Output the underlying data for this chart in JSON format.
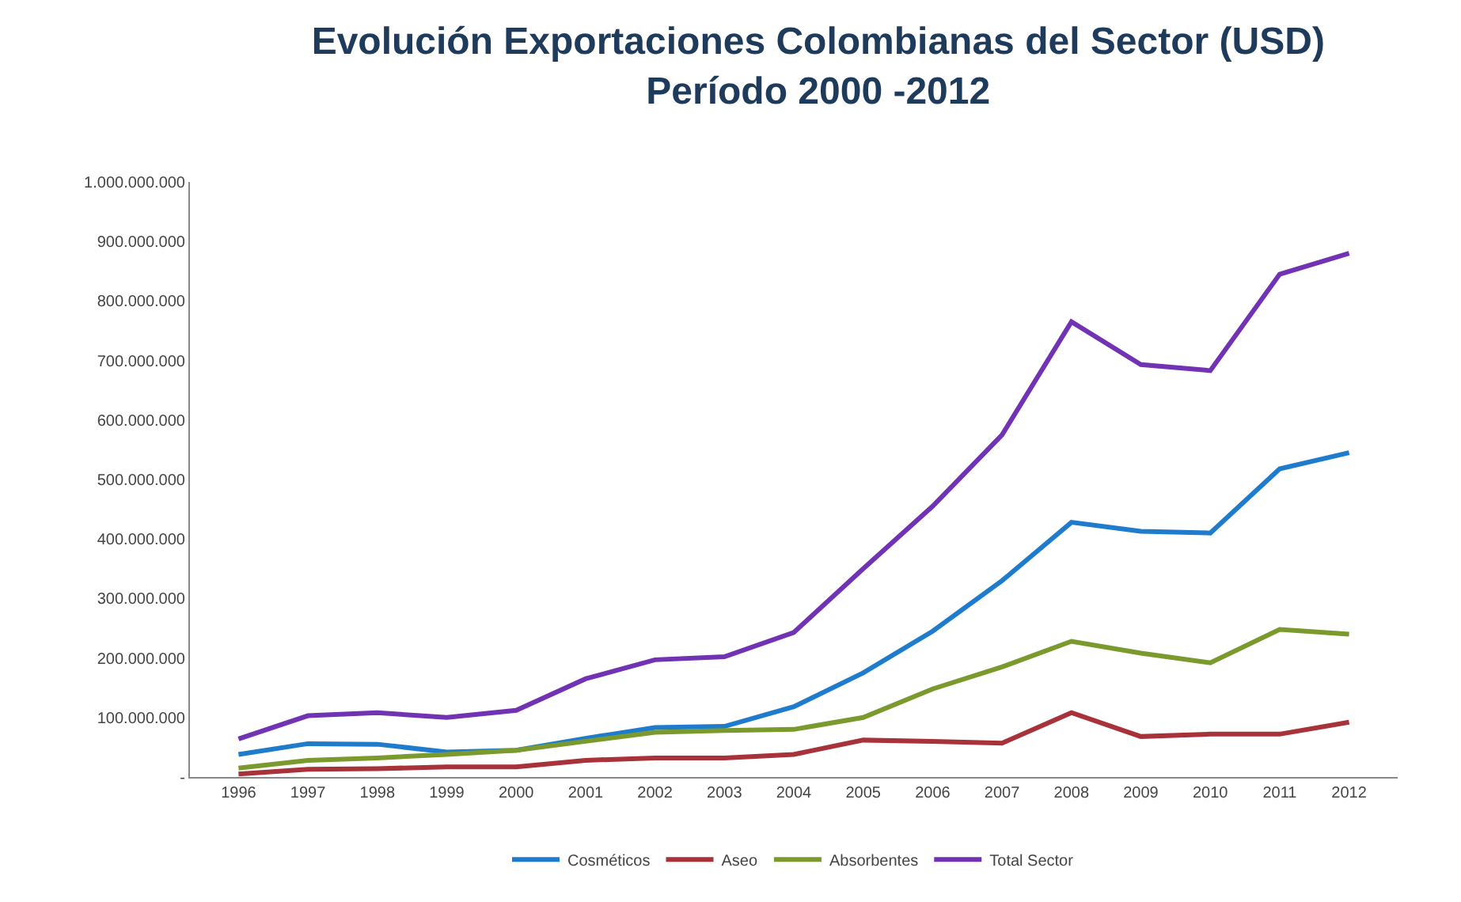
{
  "chart_data": {
    "type": "line",
    "title": "Evolución Exportaciones Colombianas del Sector (USD)",
    "subtitle": "Período 2000 -2012",
    "categories": [
      "1996",
      "1997",
      "1998",
      "1999",
      "2000",
      "2001",
      "2002",
      "2003",
      "2004",
      "2005",
      "2006",
      "2007",
      "2008",
      "2009",
      "2010",
      "2011",
      "2012"
    ],
    "series": [
      {
        "name": "Cosméticos",
        "color": "#1f7ccc",
        "values": [
          38000000,
          56000000,
          55000000,
          42000000,
          45000000,
          65000000,
          83000000,
          85000000,
          118000000,
          175000000,
          245000000,
          330000000,
          428000000,
          413000000,
          410000000,
          518000000,
          545000000
        ]
      },
      {
        "name": "Aseo",
        "color": "#a8323a",
        "values": [
          5000000,
          13000000,
          14000000,
          17000000,
          17000000,
          28000000,
          32000000,
          32000000,
          38000000,
          62000000,
          60000000,
          57000000,
          108000000,
          68000000,
          72000000,
          72000000,
          92000000
        ]
      },
      {
        "name": "Absorbentes",
        "color": "#7a9a2e",
        "values": [
          15000000,
          28000000,
          32000000,
          38000000,
          45000000,
          60000000,
          75000000,
          78000000,
          80000000,
          100000000,
          148000000,
          185000000,
          228000000,
          208000000,
          192000000,
          248000000,
          240000000
        ]
      },
      {
        "name": "Total Sector",
        "color": "#7232b4",
        "values": [
          64000000,
          103000000,
          108000000,
          100000000,
          112000000,
          165000000,
          197000000,
          202000000,
          243000000,
          350000000,
          455000000,
          575000000,
          765000000,
          693000000,
          683000000,
          845000000,
          880000000
        ]
      }
    ],
    "ylim": [
      0,
      1000000000
    ],
    "yticks": [
      {
        "value": 0,
        "label": "-"
      },
      {
        "value": 100000000,
        "label": "100.000.000"
      },
      {
        "value": 200000000,
        "label": "200.000.000"
      },
      {
        "value": 300000000,
        "label": "300.000.000"
      },
      {
        "value": 400000000,
        "label": "400.000.000"
      },
      {
        "value": 500000000,
        "label": "500.000.000"
      },
      {
        "value": 600000000,
        "label": "600.000.000"
      },
      {
        "value": 700000000,
        "label": "700.000.000"
      },
      {
        "value": 800000000,
        "label": "800.000.000"
      },
      {
        "value": 900000000,
        "label": "900.000.000"
      },
      {
        "value": 1000000000,
        "label": "1.000.000.000"
      }
    ],
    "grid": false,
    "legend": "bottom",
    "marker": "none",
    "line_style": "solid"
  }
}
